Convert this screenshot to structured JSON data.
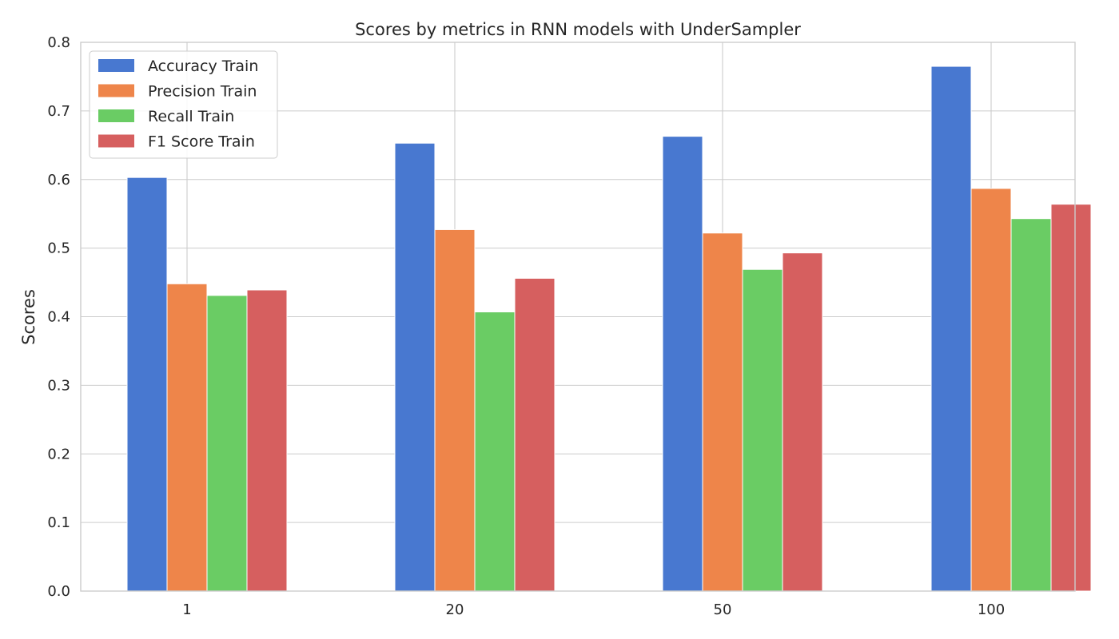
{
  "chart_data": {
    "type": "bar",
    "title": "Scores by metrics in RNN models with UnderSampler",
    "xlabel": "",
    "ylabel": "Scores",
    "categories": [
      "1",
      "20",
      "50",
      "100"
    ],
    "ylim": [
      0,
      0.8
    ],
    "yticks": [
      "0.0",
      "0.1",
      "0.2",
      "0.3",
      "0.4",
      "0.5",
      "0.6",
      "0.7",
      "0.8"
    ],
    "grid": true,
    "legend_position": "top-left",
    "series": [
      {
        "name": "Accuracy Train",
        "color": "#4878d0",
        "values": [
          0.603,
          0.653,
          0.663,
          0.765
        ]
      },
      {
        "name": "Precision Train",
        "color": "#ee854a",
        "values": [
          0.448,
          0.527,
          0.522,
          0.587
        ]
      },
      {
        "name": "Recall Train",
        "color": "#6acc64",
        "values": [
          0.431,
          0.407,
          0.469,
          0.543
        ]
      },
      {
        "name": "F1 Score Train",
        "color": "#d65f5f",
        "values": [
          0.439,
          0.456,
          0.493,
          0.564
        ]
      }
    ]
  }
}
